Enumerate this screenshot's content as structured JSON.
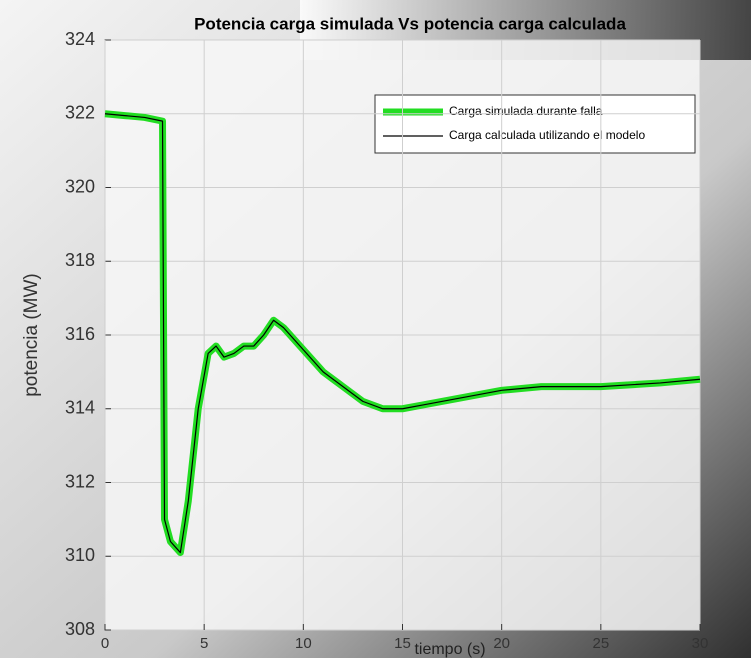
{
  "chart_data": {
    "type": "line",
    "title": "Potencia carga simulada Vs potencia carga calculada",
    "x_label": "tiempo (s)",
    "y_label": "potencia (MW)",
    "x": [
      0,
      1,
      2,
      2.9,
      3.0,
      3.3,
      3.8,
      4.2,
      4.7,
      5.2,
      5.6,
      6.0,
      6.5,
      7.0,
      7.5,
      8.0,
      8.5,
      9.0,
      10.0,
      11.0,
      12.0,
      13.0,
      14.0,
      15.0,
      16.0,
      18.0,
      20.0,
      22.0,
      25.0,
      28.0,
      30.0
    ],
    "series": [
      {
        "name": "Carga simulada durante falla",
        "color": "#22dd22",
        "width": 7,
        "values": [
          322,
          321.95,
          321.9,
          321.8,
          311,
          310.4,
          310.1,
          311.5,
          314,
          315.5,
          315.7,
          315.4,
          315.5,
          315.7,
          315.7,
          316,
          316.4,
          316.2,
          315.6,
          315,
          314.6,
          314.2,
          314,
          314,
          314.1,
          314.3,
          314.5,
          314.6,
          314.6,
          314.7,
          314.8
        ]
      },
      {
        "name": "Carga calculada utilizando el modelo",
        "color": "#000000",
        "width": 1.2,
        "values": [
          322,
          321.95,
          321.9,
          321.8,
          311,
          310.4,
          310.1,
          311.5,
          314,
          315.5,
          315.7,
          315.4,
          315.5,
          315.7,
          315.7,
          316,
          316.4,
          316.2,
          315.6,
          315,
          314.6,
          314.2,
          314,
          314,
          314.1,
          314.3,
          314.5,
          314.6,
          314.6,
          314.7,
          314.8
        ]
      }
    ],
    "xlim": [
      0,
      30
    ],
    "xticks": [
      0,
      5,
      10,
      15,
      20,
      25,
      30
    ],
    "ylim": [
      308,
      324
    ],
    "yticks": [
      308,
      310,
      312,
      314,
      316,
      318,
      320,
      322,
      324
    ],
    "grid": true,
    "legend": "upper-right"
  }
}
